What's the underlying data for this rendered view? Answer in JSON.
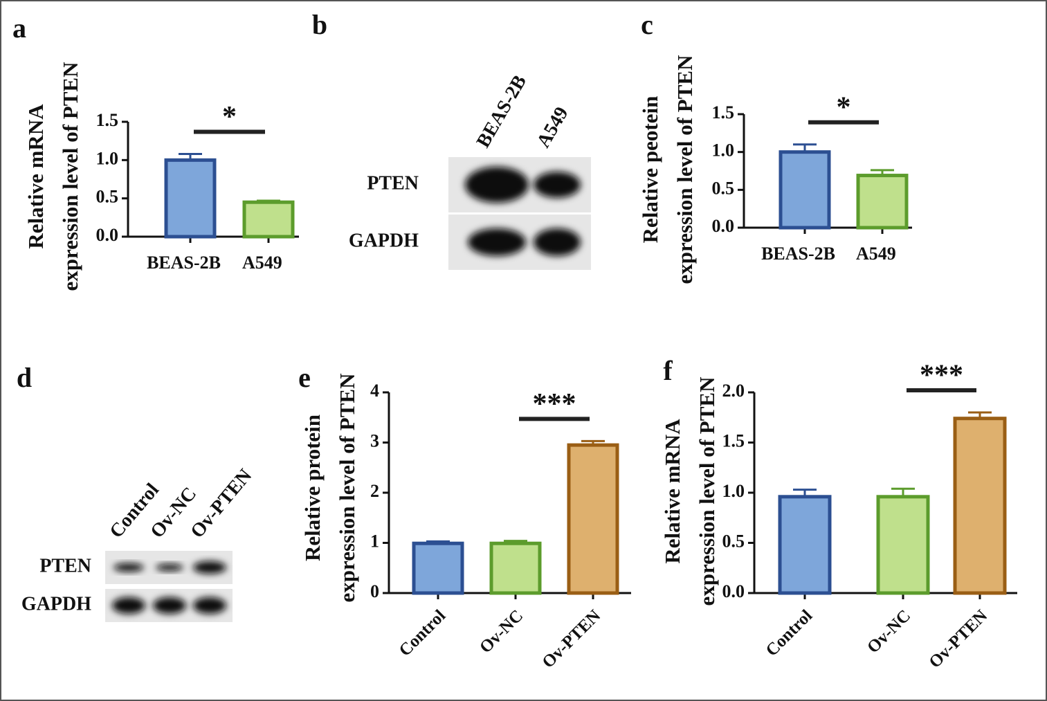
{
  "chart_data": [
    {
      "type": "bar",
      "panel": "a",
      "ylabel": [
        "Relative mRNA",
        "expression level of PTEN"
      ],
      "categories": [
        "BEAS-2B",
        "A549"
      ],
      "values": [
        1.0,
        0.45
      ],
      "errors": [
        0.08,
        0.02
      ],
      "colors": [
        "#7ea6da",
        "#bfe08c"
      ],
      "edge_colors": [
        "#2c4f92",
        "#5c9c2c"
      ],
      "ylim": [
        0,
        1.5
      ],
      "yticks": [
        {
          "value": 0,
          "label": "0.0"
        },
        0.5,
        {
          "value": 1,
          "label": "1.0"
        },
        1.5
      ],
      "annotations": [
        {
          "text": "*",
          "between": [
            "BEAS-2B",
            "A549"
          ]
        }
      ]
    },
    {
      "type": "bar",
      "panel": "c",
      "ylabel": [
        "Relative peotein",
        "expression level of PTEN"
      ],
      "categories": [
        "BEAS-2B",
        "A549"
      ],
      "values": [
        1.0,
        0.69
      ],
      "errors": [
        0.1,
        0.07
      ],
      "colors": [
        "#7ea6da",
        "#bfe08c"
      ],
      "edge_colors": [
        "#2c4f92",
        "#5c9c2c"
      ],
      "ylim": [
        0,
        1.5
      ],
      "yticks": [
        {
          "value": 0,
          "label": "0.0"
        },
        0.5,
        {
          "value": 1,
          "label": "1.0"
        },
        1.5
      ],
      "annotations": [
        {
          "text": "*",
          "between": [
            "BEAS-2B",
            "A549"
          ]
        }
      ]
    },
    {
      "type": "bar",
      "panel": "e",
      "ylabel": [
        "Relative protein",
        "expression level of PTEN"
      ],
      "categories": [
        "Control",
        "Ov-NC",
        "Ov-PTEN"
      ],
      "values": [
        0.99,
        0.99,
        2.95
      ],
      "errors": [
        0.04,
        0.05,
        0.08
      ],
      "colors": [
        "#7ea6da",
        "#bfe08c",
        "#deb06e"
      ],
      "edge_colors": [
        "#2c4f92",
        "#5c9c2c",
        "#9a5e14"
      ],
      "ylim": [
        0,
        4
      ],
      "yticks": [
        0,
        1,
        2,
        3,
        4
      ],
      "xtick_rotation": -45,
      "annotations": [
        {
          "text": "***",
          "between": [
            "Ov-NC",
            "Ov-PTEN"
          ]
        }
      ]
    },
    {
      "type": "bar",
      "panel": "f",
      "ylabel": [
        "Relative mRNA",
        "expression level of PTEN"
      ],
      "categories": [
        "Control",
        "Ov-NC",
        "Ov-PTEN"
      ],
      "values": [
        0.96,
        0.96,
        1.74
      ],
      "errors": [
        0.07,
        0.08,
        0.06
      ],
      "colors": [
        "#7ea6da",
        "#bfe08c",
        "#deb06e"
      ],
      "edge_colors": [
        "#2c4f92",
        "#5c9c2c",
        "#9a5e14"
      ],
      "ylim": [
        0,
        2
      ],
      "yticks": [
        {
          "value": 0,
          "label": "0.0"
        },
        0.5,
        {
          "value": 1,
          "label": "1.0"
        },
        1.5,
        {
          "value": 2,
          "label": "2.0"
        }
      ],
      "xtick_rotation": -45,
      "annotations": [
        {
          "text": "***",
          "between": [
            "Ov-NC",
            "Ov-PTEN"
          ]
        }
      ]
    }
  ],
  "blots": [
    {
      "panel": "b",
      "lanes": [
        "BEAS-2B",
        "A549"
      ],
      "rows": [
        "PTEN",
        "GAPDH"
      ]
    },
    {
      "panel": "d",
      "lanes": [
        "Control",
        "Ov-NC",
        "Ov-PTEN"
      ],
      "rows": [
        "PTEN",
        "GAPDH"
      ]
    }
  ]
}
